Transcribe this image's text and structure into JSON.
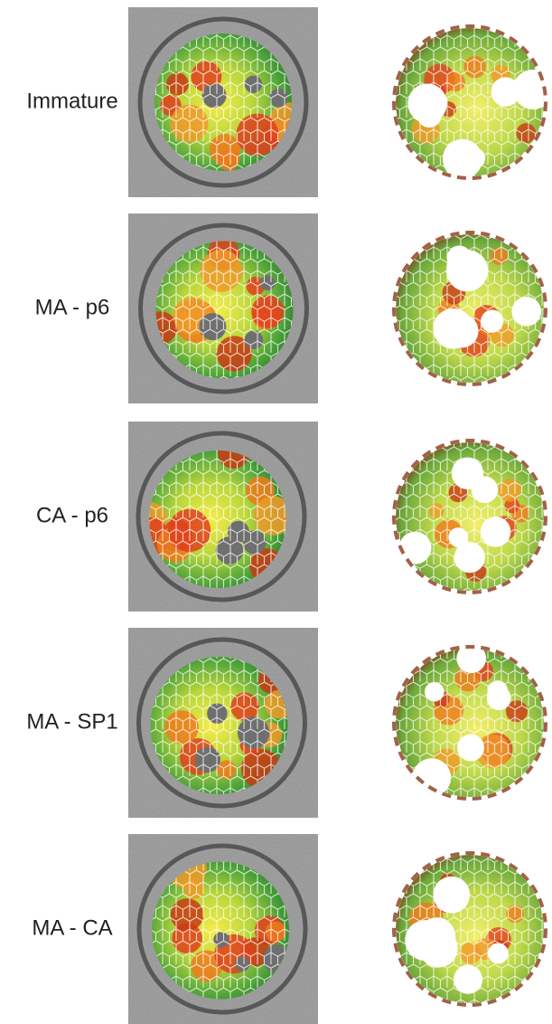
{
  "rows": [
    {
      "label": "Immature"
    },
    {
      "label": "MA - p6"
    },
    {
      "label": "CA - p6"
    },
    {
      "label": "MA - SP1"
    },
    {
      "label": "MA - CA"
    }
  ]
}
